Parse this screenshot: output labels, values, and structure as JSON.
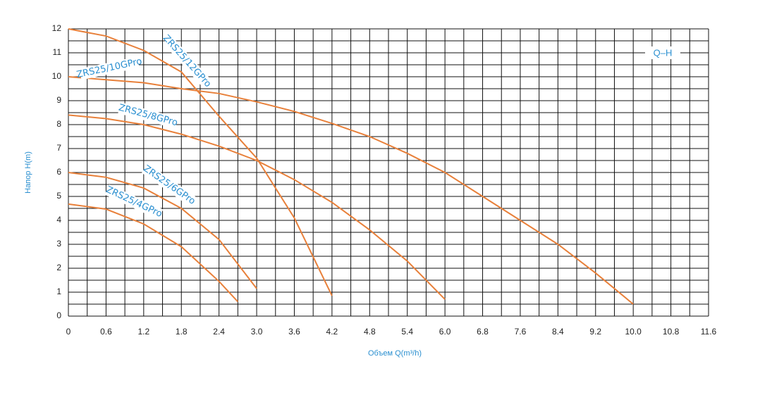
{
  "chart_data": {
    "type": "line",
    "legend_text": "Q–H",
    "xlabel": "Объем Q(m³/h)",
    "ylabel": "Напор H(m)",
    "xlim": [
      0,
      11.6
    ],
    "ylim": [
      0,
      12
    ],
    "xticks": [
      {
        "value": 0,
        "label": "0"
      },
      0.6,
      1.2,
      1.8,
      2.4,
      {
        "value": 3,
        "label": "3.0"
      },
      3.6,
      4.2,
      4.8,
      5.4,
      {
        "value": 6,
        "label": "6.0"
      },
      6.8,
      7.6,
      8.4,
      9.2,
      {
        "value": 10,
        "label": "10.0"
      },
      10.8,
      11.6
    ],
    "yticks": [
      0,
      1,
      2,
      3,
      4,
      5,
      6,
      7,
      8,
      9,
      10,
      11,
      12
    ],
    "grid": true,
    "series": [
      {
        "name": "ZRS25/12GPro",
        "color": "#e8803a",
        "x": [
          0,
          0.6,
          1.2,
          1.8,
          2.4,
          3,
          3.6,
          4.2
        ],
        "values": [
          12.0,
          11.7,
          11.1,
          10.2,
          8.35,
          6.6,
          4.1,
          0.85
        ]
      },
      {
        "name": "ZRS25/10GPro",
        "color": "#e8803a",
        "x": [
          0,
          1.2,
          1.8,
          2.4,
          3,
          3.6,
          4.2,
          4.8,
          5.4,
          6,
          6.8,
          7.6,
          8.4,
          9.2,
          10
        ],
        "values": [
          10.0,
          9.75,
          9.5,
          9.3,
          8.95,
          8.55,
          8.05,
          7.5,
          6.8,
          6.0,
          5.0,
          4.0,
          3.0,
          1.8,
          0.5
        ]
      },
      {
        "name": "ZRS25/8GPro",
        "color": "#e8803a",
        "x": [
          0,
          0.6,
          1.2,
          1.8,
          2.4,
          3,
          3.6,
          4.2,
          4.8,
          5.4,
          6
        ],
        "values": [
          8.4,
          8.25,
          8.0,
          7.6,
          7.1,
          6.5,
          5.7,
          4.75,
          3.6,
          2.3,
          0.7
        ]
      },
      {
        "name": "ZRS25/6GPro",
        "color": "#e8803a",
        "x": [
          0,
          0.6,
          1.2,
          1.8,
          2.4,
          3
        ],
        "values": [
          6.0,
          5.8,
          5.35,
          4.5,
          3.2,
          1.15
        ]
      },
      {
        "name": "ZRS25/4GPro",
        "color": "#e8803a",
        "x": [
          0,
          0.6,
          1.2,
          1.8,
          2.4,
          2.7
        ],
        "values": [
          4.68,
          4.47,
          3.85,
          2.9,
          1.45,
          0.6
        ]
      }
    ]
  }
}
